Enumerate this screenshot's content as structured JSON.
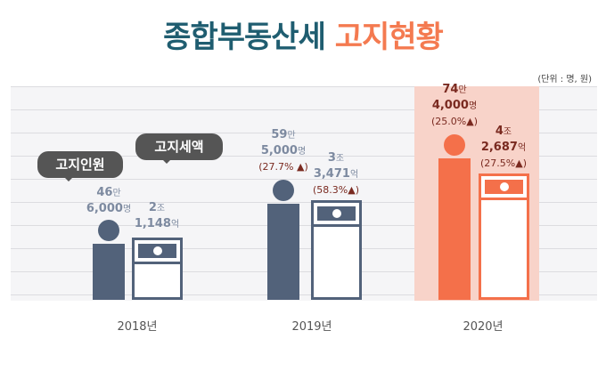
{
  "title": {
    "part1": "종합부동산세",
    "part2": "고지현황"
  },
  "unit": "(단위 : 명, 원)",
  "legend": {
    "people": "고지인원",
    "tax": "고지세액"
  },
  "colors": {
    "normal": "#52627a",
    "highlight": "#f4704a",
    "highlight_bg": "#f8d3c9",
    "title": "#1f5d70"
  },
  "chart_data": {
    "type": "bar",
    "categories": [
      "2018년",
      "2019년",
      "2020년"
    ],
    "series": [
      {
        "name": "고지인원",
        "values": [
          466000,
          595000,
          744000
        ],
        "labels": [
          {
            "a": "46",
            "au": "만",
            "b": "6,000",
            "bu": "명"
          },
          {
            "a": "59",
            "au": "만",
            "b": "5,000",
            "bu": "명"
          },
          {
            "a": "74",
            "au": "만",
            "b": "4,000",
            "bu": "명"
          }
        ],
        "change": [
          "",
          "(27.7% ▲)",
          "(25.0%▲)"
        ]
      },
      {
        "name": "고지세액",
        "values_eok": [
          21148,
          33471,
          42687
        ],
        "labels": [
          {
            "a": "2",
            "au": "조",
            "b": "1,148",
            "bu": "억"
          },
          {
            "a": "3",
            "au": "조",
            "b": "3,471",
            "bu": "억"
          },
          {
            "a": "4",
            "au": "조",
            "b": "2,687",
            "bu": "억"
          }
        ],
        "change": [
          "",
          "(58.3%▲)",
          "(27.5%▲)"
        ]
      }
    ],
    "highlight": "2020년"
  }
}
